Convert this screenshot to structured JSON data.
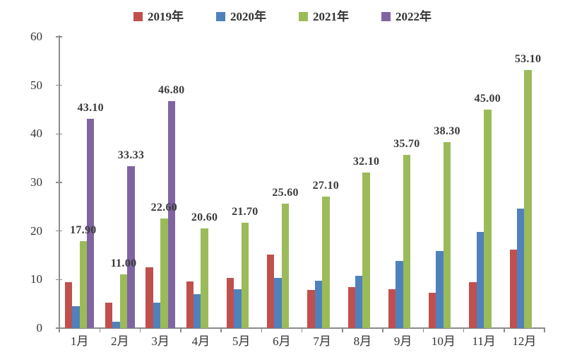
{
  "chart_data": {
    "type": "bar",
    "title": "",
    "categories": [
      "1月",
      "2月",
      "3月",
      "4月",
      "5月",
      "6月",
      "7月",
      "8月",
      "9月",
      "10月",
      "11月",
      "12月"
    ],
    "series": [
      {
        "name": "2019年",
        "color": "#C0504D",
        "values": [
          9.5,
          5.2,
          12.5,
          9.6,
          10.3,
          15.2,
          7.9,
          8.5,
          8.0,
          7.3,
          9.5,
          16.2
        ],
        "labels": [
          null,
          null,
          null,
          null,
          null,
          null,
          null,
          null,
          null,
          null,
          null,
          null
        ]
      },
      {
        "name": "2020年",
        "color": "#4F81BD",
        "values": [
          4.5,
          1.3,
          5.2,
          7.0,
          8.0,
          10.3,
          9.7,
          10.8,
          13.9,
          15.9,
          19.8,
          24.6
        ],
        "labels": [
          null,
          null,
          null,
          null,
          null,
          null,
          null,
          null,
          null,
          null,
          null,
          null
        ]
      },
      {
        "name": "2021年",
        "color": "#9BBB59",
        "values": [
          17.9,
          11.0,
          22.6,
          20.6,
          21.7,
          25.6,
          27.1,
          32.1,
          35.7,
          38.3,
          45.0,
          53.1
        ],
        "labels": [
          "17.90",
          "11.00",
          "22.60",
          "20.60",
          "21.70",
          "25.60",
          "27.10",
          "32.10",
          "35.70",
          "38.30",
          "45.00",
          "53.10"
        ]
      },
      {
        "name": "2022年",
        "color": "#8064A2",
        "values": [
          43.1,
          33.33,
          46.8,
          null,
          null,
          null,
          null,
          null,
          null,
          null,
          null,
          null
        ],
        "labels": [
          "43.10",
          "33.33",
          "46.80",
          null,
          null,
          null,
          null,
          null,
          null,
          null,
          null,
          null
        ]
      }
    ],
    "ylim": [
      0,
      60
    ],
    "yticks": [
      0,
      10,
      20,
      30,
      40,
      50,
      60
    ],
    "grid": false,
    "legend_position": "top",
    "axis_color": "#8C8C8C",
    "text_color": "#333333"
  }
}
